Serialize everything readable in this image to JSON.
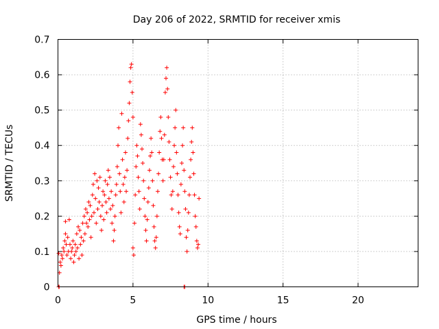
{
  "chart_data": {
    "type": "scatter",
    "title": "Day 206 of 2022, SRMTID for receiver xmis",
    "xlabel": "GPS time / hours",
    "ylabel": "SRMTID / TECUs",
    "xlim": [
      0,
      24
    ],
    "ylim": [
      0,
      0.7
    ],
    "x_ticks": [
      0,
      5,
      10,
      15,
      20
    ],
    "y_ticks": [
      0,
      0.1,
      0.2,
      0.3,
      0.4,
      0.5,
      0.6,
      0.7
    ],
    "x_tick_labels": [
      "0",
      "5",
      "10",
      "15",
      "20"
    ],
    "y_tick_labels": [
      "0",
      "0.1",
      "0.2",
      "0.3",
      "0.4",
      "0.5",
      "0.6",
      "0.7"
    ],
    "grid": true,
    "marker": "+",
    "color": "#ff0000",
    "series": [
      {
        "points": [
          [
            0.05,
            0.0
          ],
          [
            0.08,
            0.0
          ],
          [
            8.4,
            0.0
          ],
          [
            8.45,
            0.0
          ],
          [
            0.05,
            0.095
          ],
          [
            0.1,
            0.04
          ],
          [
            0.15,
            0.07
          ],
          [
            0.2,
            0.06
          ],
          [
            0.25,
            0.09
          ],
          [
            0.3,
            0.08
          ],
          [
            0.35,
            0.11
          ],
          [
            0.4,
            0.1
          ],
          [
            0.45,
            0.13
          ],
          [
            0.5,
            0.15
          ],
          [
            0.5,
            0.185
          ],
          [
            0.55,
            0.12
          ],
          [
            0.6,
            0.09
          ],
          [
            0.65,
            0.14
          ],
          [
            0.7,
            0.1
          ],
          [
            0.75,
            0.19
          ],
          [
            0.8,
            0.12
          ],
          [
            0.85,
            0.08
          ],
          [
            0.9,
            0.1
          ],
          [
            0.95,
            0.11
          ],
          [
            1.0,
            0.13
          ],
          [
            1.05,
            0.07
          ],
          [
            1.1,
            0.09
          ],
          [
            1.15,
            0.12
          ],
          [
            1.2,
            0.1
          ],
          [
            1.25,
            0.15
          ],
          [
            1.3,
            0.11
          ],
          [
            1.35,
            0.17
          ],
          [
            1.4,
            0.08
          ],
          [
            1.45,
            0.16
          ],
          [
            1.5,
            0.12
          ],
          [
            1.55,
            0.14
          ],
          [
            1.6,
            0.09
          ],
          [
            1.65,
            0.18
          ],
          [
            1.7,
            0.13
          ],
          [
            1.75,
            0.2
          ],
          [
            1.8,
            0.15
          ],
          [
            1.85,
            0.22
          ],
          [
            1.9,
            0.18
          ],
          [
            1.95,
            0.21
          ],
          [
            2.0,
            0.17
          ],
          [
            2.05,
            0.24
          ],
          [
            2.1,
            0.19
          ],
          [
            2.15,
            0.23
          ],
          [
            2.2,
            0.14
          ],
          [
            2.25,
            0.2
          ],
          [
            2.3,
            0.26
          ],
          [
            2.35,
            0.29
          ],
          [
            2.4,
            0.21
          ],
          [
            2.45,
            0.32
          ],
          [
            2.5,
            0.25
          ],
          [
            2.55,
            0.18
          ],
          [
            2.6,
            0.3
          ],
          [
            2.65,
            0.22
          ],
          [
            2.7,
            0.28
          ],
          [
            2.75,
            0.24
          ],
          [
            2.8,
            0.31
          ],
          [
            2.85,
            0.2
          ],
          [
            2.9,
            0.16
          ],
          [
            2.95,
            0.23
          ],
          [
            3.0,
            0.27
          ],
          [
            3.05,
            0.19
          ],
          [
            3.1,
            0.26
          ],
          [
            3.15,
            0.3
          ],
          [
            3.2,
            0.24
          ],
          [
            3.25,
            0.21
          ],
          [
            3.3,
            0.29
          ],
          [
            3.35,
            0.33
          ],
          [
            3.4,
            0.25
          ],
          [
            3.45,
            0.31
          ],
          [
            3.5,
            0.22
          ],
          [
            3.55,
            0.27
          ],
          [
            3.6,
            0.18
          ],
          [
            3.65,
            0.23
          ],
          [
            3.7,
            0.13
          ],
          [
            3.75,
            0.16
          ],
          [
            3.8,
            0.2
          ],
          [
            3.85,
            0.26
          ],
          [
            3.9,
            0.29
          ],
          [
            3.95,
            0.34
          ],
          [
            4.0,
            0.4
          ],
          [
            4.05,
            0.45
          ],
          [
            4.1,
            0.32
          ],
          [
            4.15,
            0.27
          ],
          [
            4.2,
            0.21
          ],
          [
            4.25,
            0.49
          ],
          [
            4.3,
            0.36
          ],
          [
            4.35,
            0.29
          ],
          [
            4.4,
            0.24
          ],
          [
            4.45,
            0.31
          ],
          [
            4.5,
            0.38
          ],
          [
            4.55,
            0.27
          ],
          [
            4.6,
            0.33
          ],
          [
            4.65,
            0.42
          ],
          [
            4.7,
            0.47
          ],
          [
            4.75,
            0.52
          ],
          [
            4.8,
            0.58
          ],
          [
            4.85,
            0.62
          ],
          [
            4.9,
            0.63
          ],
          [
            4.95,
            0.55
          ],
          [
            5.0,
            0.48
          ],
          [
            5.0,
            0.11
          ],
          [
            5.05,
            0.09
          ],
          [
            5.1,
            0.18
          ],
          [
            5.15,
            0.26
          ],
          [
            5.2,
            0.34
          ],
          [
            5.25,
            0.4
          ],
          [
            5.3,
            0.37
          ],
          [
            5.35,
            0.31
          ],
          [
            5.4,
            0.27
          ],
          [
            5.45,
            0.22
          ],
          [
            5.5,
            0.46
          ],
          [
            5.55,
            0.43
          ],
          [
            5.6,
            0.39
          ],
          [
            5.65,
            0.35
          ],
          [
            5.7,
            0.3
          ],
          [
            5.75,
            0.25
          ],
          [
            5.8,
            0.2
          ],
          [
            5.85,
            0.16
          ],
          [
            5.9,
            0.13
          ],
          [
            5.95,
            0.19
          ],
          [
            6.0,
            0.24
          ],
          [
            6.05,
            0.28
          ],
          [
            6.1,
            0.33
          ],
          [
            6.15,
            0.37
          ],
          [
            6.2,
            0.42
          ],
          [
            6.25,
            0.38
          ],
          [
            6.3,
            0.3
          ],
          [
            6.35,
            0.23
          ],
          [
            6.4,
            0.17
          ],
          [
            6.45,
            0.13
          ],
          [
            6.5,
            0.11
          ],
          [
            6.55,
            0.14
          ],
          [
            6.6,
            0.2
          ],
          [
            6.65,
            0.27
          ],
          [
            6.7,
            0.32
          ],
          [
            6.75,
            0.38
          ],
          [
            6.8,
            0.44
          ],
          [
            6.85,
            0.48
          ],
          [
            6.9,
            0.42
          ],
          [
            6.95,
            0.36
          ],
          [
            7.0,
            0.3
          ],
          [
            7.05,
            0.36
          ],
          [
            7.1,
            0.43
          ],
          [
            7.15,
            0.55
          ],
          [
            7.2,
            0.59
          ],
          [
            7.25,
            0.62
          ],
          [
            7.3,
            0.56
          ],
          [
            7.35,
            0.48
          ],
          [
            7.4,
            0.41
          ],
          [
            7.45,
            0.36
          ],
          [
            7.5,
            0.31
          ],
          [
            7.55,
            0.26
          ],
          [
            7.6,
            0.22
          ],
          [
            7.65,
            0.27
          ],
          [
            7.7,
            0.34
          ],
          [
            7.75,
            0.4
          ],
          [
            7.8,
            0.45
          ],
          [
            7.85,
            0.5
          ],
          [
            7.9,
            0.38
          ],
          [
            7.95,
            0.32
          ],
          [
            8.0,
            0.26
          ],
          [
            8.05,
            0.21
          ],
          [
            8.1,
            0.17
          ],
          [
            8.15,
            0.15
          ],
          [
            8.2,
            0.29
          ],
          [
            8.25,
            0.35
          ],
          [
            8.3,
            0.4
          ],
          [
            8.35,
            0.45
          ],
          [
            8.4,
            0.33
          ],
          [
            8.45,
            0.27
          ],
          [
            8.5,
            0.22
          ],
          [
            8.55,
            0.14
          ],
          [
            8.6,
            0.1
          ],
          [
            8.65,
            0.16
          ],
          [
            8.7,
            0.21
          ],
          [
            8.75,
            0.26
          ],
          [
            8.8,
            0.31
          ],
          [
            8.85,
            0.36
          ],
          [
            8.9,
            0.41
          ],
          [
            8.95,
            0.45
          ],
          [
            9.0,
            0.38
          ],
          [
            9.05,
            0.32
          ],
          [
            9.1,
            0.26
          ],
          [
            9.15,
            0.2
          ],
          [
            9.2,
            0.17
          ],
          [
            9.25,
            0.13
          ],
          [
            9.3,
            0.11
          ],
          [
            9.35,
            0.12
          ],
          [
            9.4,
            0.25
          ]
        ]
      }
    ]
  }
}
